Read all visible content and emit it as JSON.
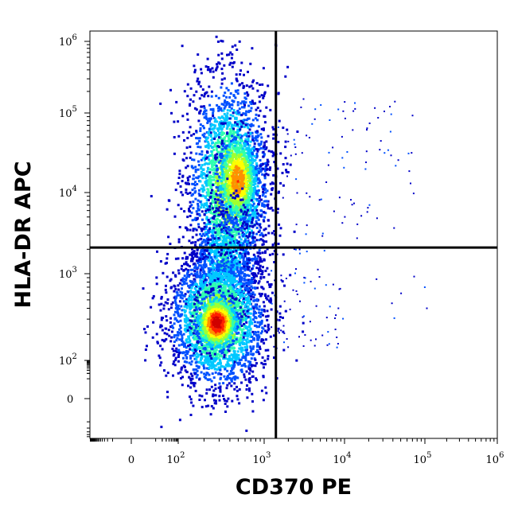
{
  "chart_data": {
    "type": "scatter",
    "title": "",
    "xlabel": "CD370 PE",
    "ylabel": "HLA-DR APC",
    "x_scale": "biexponential",
    "y_scale": "biexponential",
    "xlim": [
      -200,
      1000000
    ],
    "ylim": [
      -60,
      1000000
    ],
    "x_ticks": [
      {
        "base": "0",
        "exp": ""
      },
      {
        "base": "10",
        "exp": "2"
      },
      {
        "base": "10",
        "exp": "3"
      },
      {
        "base": "10",
        "exp": "4"
      },
      {
        "base": "10",
        "exp": "5"
      },
      {
        "base": "10",
        "exp": "6"
      }
    ],
    "y_ticks": [
      {
        "base": "0",
        "exp": ""
      },
      {
        "base": "10",
        "exp": "2"
      },
      {
        "base": "10",
        "exp": "3"
      },
      {
        "base": "10",
        "exp": "4"
      },
      {
        "base": "10",
        "exp": "5"
      },
      {
        "base": "10",
        "exp": "6"
      }
    ],
    "quadrant_gate": {
      "x": 1400,
      "y": 2100
    },
    "populations": [
      {
        "label": "HLA-DR low, CD370 negative",
        "center": [
          280,
          280
        ],
        "relative_density": "highest"
      },
      {
        "label": "HLA-DR high, CD370 negative",
        "center": [
          450,
          15000
        ],
        "relative_density": "high"
      },
      {
        "label": "HLA-DR high, CD370 positive",
        "center": [
          20000,
          15000
        ],
        "relative_density": "sparse"
      },
      {
        "label": "HLA-DR low, CD370 positive",
        "center": [
          3000,
          400
        ],
        "relative_density": "sparse"
      }
    ],
    "colormap": [
      "#0000c8",
      "#0050ff",
      "#00c8ff",
      "#30ffb0",
      "#a0ff30",
      "#ffff00",
      "#ff9000",
      "#ff2000",
      "#d00000"
    ],
    "grid": false,
    "legend": "none"
  }
}
